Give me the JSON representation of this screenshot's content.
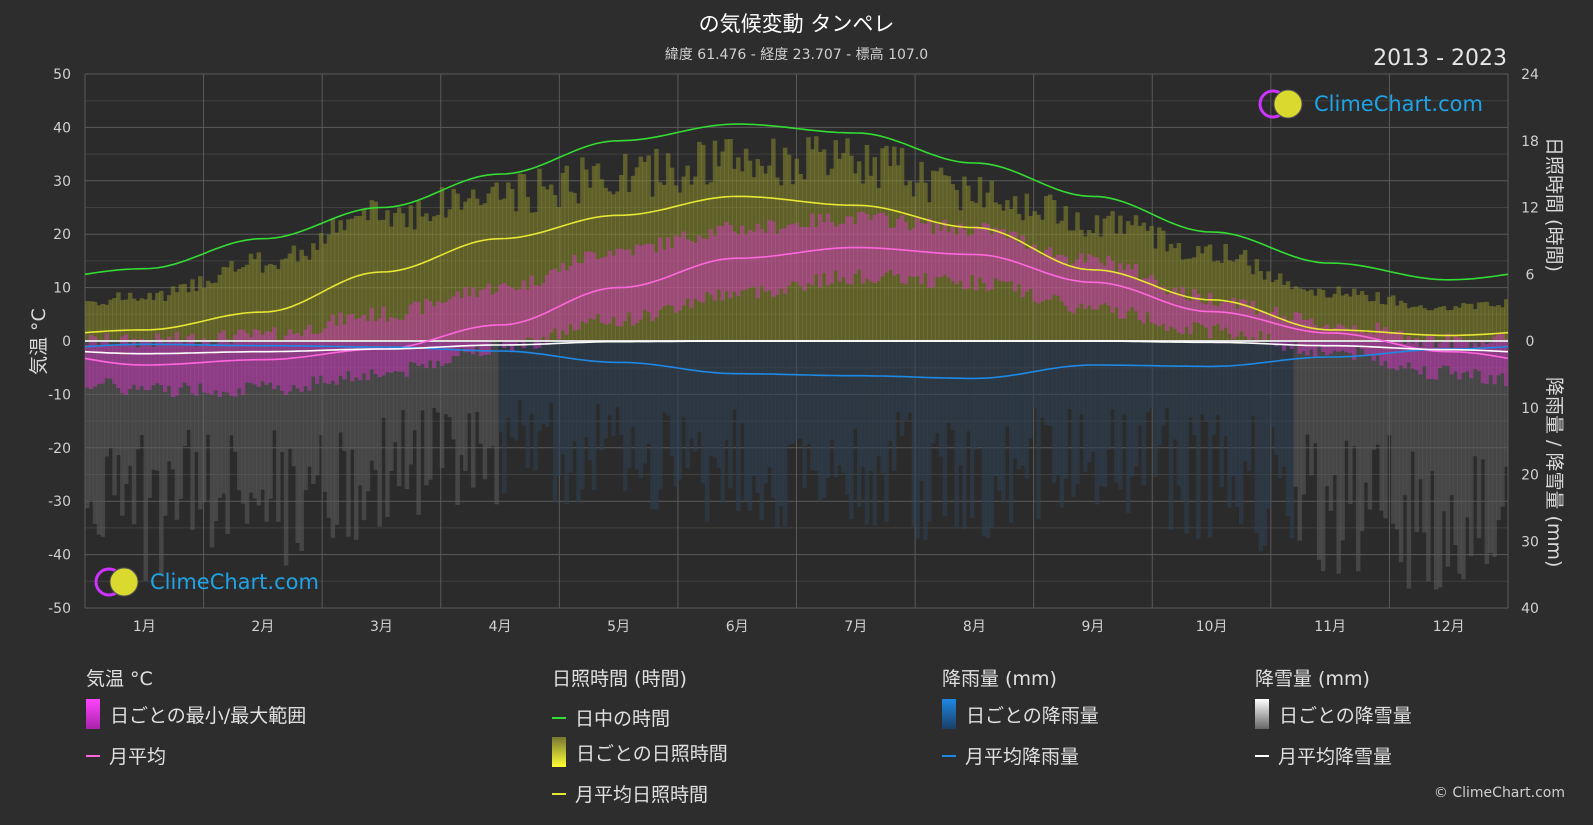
{
  "header": {
    "title": "の気候変動 タンペレ",
    "subtitle": "緯度 61.476 - 経度 23.707 - 標高 107.0",
    "years": "2013 - 2023"
  },
  "axes": {
    "left_title": "気温 °C",
    "right_top_title": "日照時間 (時間)",
    "right_bottom_title": "降雨量 / 降雪量 (mm)"
  },
  "branding": {
    "logo_text": "ClimeChart.com",
    "copyright": "© ClimeChart.com"
  },
  "legend": {
    "temp": {
      "title": "気温 °C",
      "items": [
        "日ごとの最小/最大範囲",
        "月平均"
      ]
    },
    "sun": {
      "title": "日照時間 (時間)",
      "items": [
        "日中の時間",
        "日ごとの日照時間",
        "月平均日照時間"
      ]
    },
    "rain": {
      "title": "降雨量 (mm)",
      "items": [
        "日ごとの降雨量",
        "月平均降雨量"
      ]
    },
    "snow": {
      "title": "降雪量 (mm)",
      "items": [
        "日ごとの降雪量",
        "月平均降雪量"
      ]
    }
  },
  "colors": {
    "background": "#2d2d2d",
    "daylight": "#33dd33",
    "sunshine": "#e6e633",
    "temp_mean": "#ff66dd",
    "temp_range": "#dd33cc",
    "rain": "#1e88e5",
    "snow": "#ffffff",
    "logo": "#1fa3e6"
  },
  "chart_data": {
    "type": "line",
    "categories": [
      "1月",
      "2月",
      "3月",
      "4月",
      "5月",
      "6月",
      "7月",
      "8月",
      "9月",
      "10月",
      "11月",
      "12月"
    ],
    "temp_axis": {
      "min": -50,
      "max": 50,
      "ticks": [
        50,
        40,
        30,
        20,
        10,
        0,
        -10,
        -20,
        -30,
        -40,
        -50
      ]
    },
    "sun_axis": {
      "min": 0,
      "max": 24,
      "ticks": [
        24,
        18,
        12,
        6,
        0
      ]
    },
    "precip_axis": {
      "min": 0,
      "max": 40,
      "ticks": [
        10,
        20,
        30,
        40
      ]
    },
    "series": [
      {
        "name": "日中の時間",
        "axis": "sun",
        "values": [
          6.5,
          9.2,
          12.0,
          15.0,
          18.0,
          19.5,
          18.7,
          16.0,
          13.0,
          9.8,
          7.0,
          5.5
        ]
      },
      {
        "name": "月平均日照時間",
        "axis": "sun",
        "values": [
          1.0,
          2.6,
          6.2,
          9.2,
          11.3,
          13.0,
          12.2,
          10.2,
          6.4,
          3.7,
          1.0,
          0.5
        ]
      },
      {
        "name": "月平均",
        "axis": "temp",
        "values": [
          -4.5,
          -3.5,
          -1.5,
          3.0,
          10.0,
          15.5,
          17.5,
          16.2,
          11.0,
          5.5,
          1.5,
          -2.0
        ]
      },
      {
        "name": "月平均降雨量",
        "axis": "precip",
        "values": [
          0.5,
          0.7,
          0.9,
          1.5,
          3.2,
          4.9,
          5.2,
          5.6,
          3.6,
          3.8,
          2.4,
          1.2
        ]
      },
      {
        "name": "月平均降雪量",
        "axis": "precip",
        "values": [
          1.9,
          1.6,
          1.2,
          0.6,
          0.1,
          0.0,
          0.0,
          0.0,
          0.0,
          0.2,
          0.7,
          1.3
        ]
      }
    ],
    "temp_range": {
      "name": "日ごとの最小/最大範囲",
      "min": [
        -9,
        -9,
        -6,
        -1,
        4,
        9,
        12,
        11,
        6,
        2,
        -2,
        -6
      ],
      "max": [
        0,
        1,
        5,
        10,
        17,
        21,
        23,
        21,
        15,
        8,
        3,
        0
      ]
    },
    "daily_sunshine_envelope": {
      "name": "日ごとの日照時間",
      "max": [
        4.5,
        8.0,
        13.0,
        15.0,
        17.0,
        18.5,
        18.5,
        15.5,
        12.5,
        9.0,
        5.0,
        3.5
      ]
    },
    "daily_precip_envelope": {
      "name": "日ごとの降雨量 / 日ごとの降雪量",
      "max": [
        37,
        35,
        30,
        25,
        25,
        28,
        30,
        30,
        25,
        30,
        35,
        38
      ]
    },
    "grid": true
  }
}
